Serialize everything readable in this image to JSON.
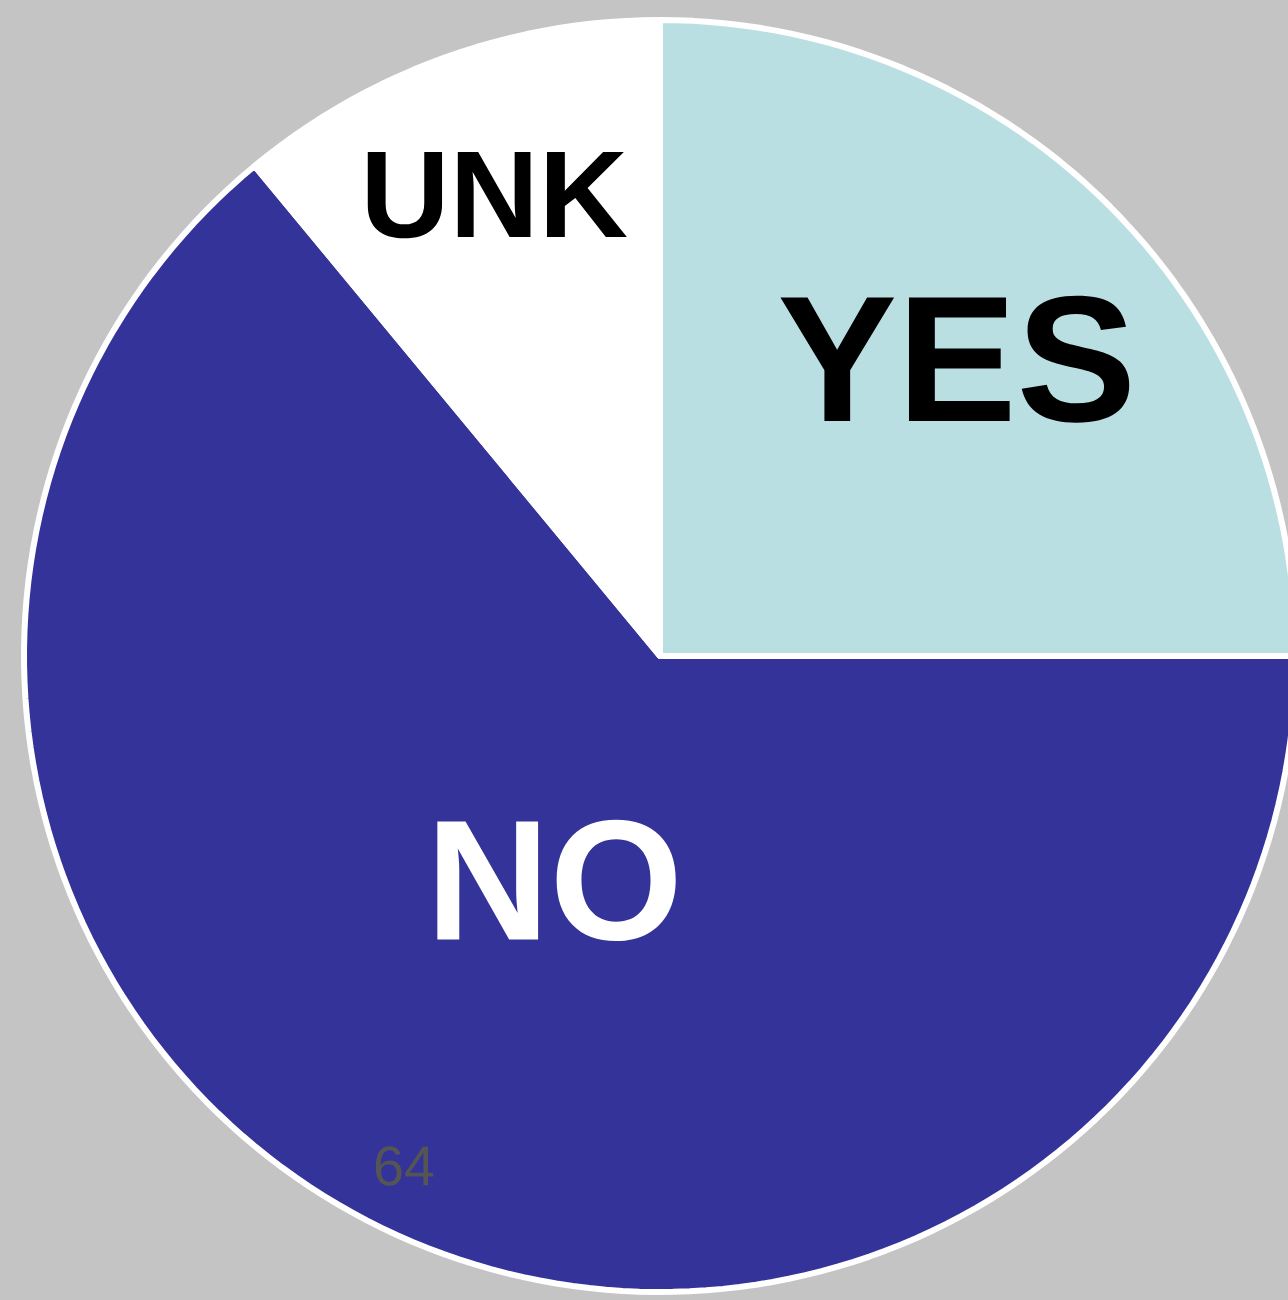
{
  "chart_data": {
    "type": "pie",
    "categories": [
      "YES",
      "NO",
      "UNK"
    ],
    "values": [
      25,
      64,
      11
    ],
    "colors": [
      "#b9dfe3",
      "#333399",
      "#ffffff"
    ],
    "annotations": [
      "64"
    ]
  }
}
